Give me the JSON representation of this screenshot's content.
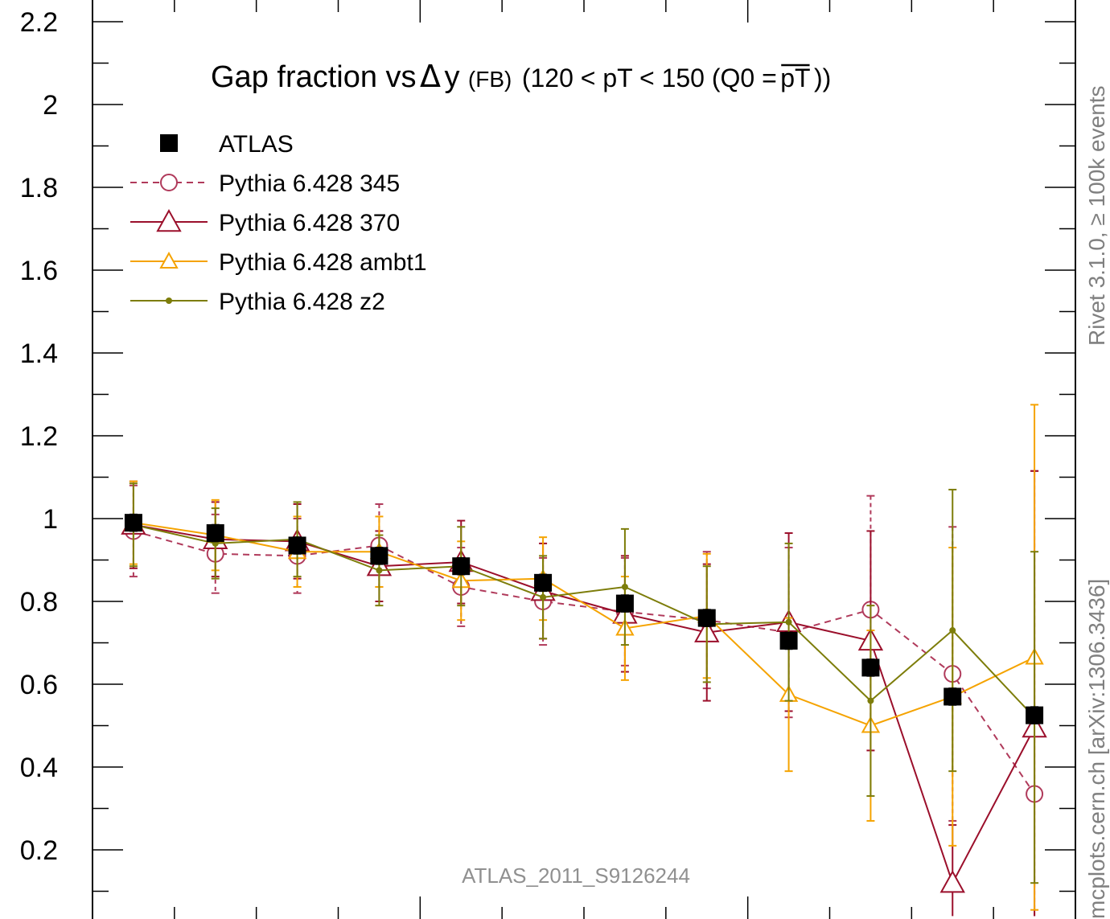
{
  "chart_data": {
    "type": "line",
    "title": {
      "main": "Gap fraction vs",
      "delta": "Δ",
      "var": "y",
      "sub": "(FB)",
      "range": "(120 < pT < 150 (Q0 =",
      "overline": "pT",
      "close": "))"
    },
    "reference_label": "ATLAS_2011_S9126244",
    "side_label_top": "Rivet 3.1.0, ≥ 100k events",
    "side_label_bottom": "mcplots.cern.ch [arXiv:1306.3436]",
    "ylim": [
      0.04,
      2.22
    ],
    "xlim": [
      0,
      12
    ],
    "y_ticks": [
      {
        "value": 0.2,
        "label": "0.2"
      },
      {
        "value": 0.4,
        "label": "0.4"
      },
      {
        "value": 0.6,
        "label": "0.6"
      },
      {
        "value": 0.8,
        "label": "0.8"
      },
      {
        "value": 1.0,
        "label": "1"
      },
      {
        "value": 1.2,
        "label": "1.2"
      },
      {
        "value": 1.4,
        "label": "1.4"
      },
      {
        "value": 1.6,
        "label": "1.6"
      },
      {
        "value": 1.8,
        "label": "1.8"
      },
      {
        "value": 2.0,
        "label": "2"
      },
      {
        "value": 2.2,
        "label": "2.2"
      }
    ],
    "x": [
      0.5,
      1.5,
      2.5,
      3.5,
      4.5,
      5.5,
      6.5,
      7.5,
      8.5,
      9.5,
      10.5,
      11.5
    ],
    "series": [
      {
        "name": "ATLAS",
        "style": "data",
        "color": "#000000",
        "values": [
          0.99,
          0.965,
          0.935,
          0.91,
          0.885,
          0.845,
          0.795,
          0.76,
          0.705,
          0.64,
          0.57,
          0.525
        ],
        "err": [
          0.02,
          0.02,
          0.02,
          0.02,
          0.02,
          0.02,
          0.02,
          0.02,
          0.02,
          0.02,
          0.02,
          0.02
        ]
      },
      {
        "name": "Pythia 6.428 345",
        "style": "circle-dashed",
        "color": "#b03a5b",
        "values": [
          0.97,
          0.915,
          0.91,
          0.935,
          0.835,
          0.8,
          0.775,
          0.755,
          0.725,
          0.78,
          0.625,
          0.335
        ],
        "err": [
          0.11,
          0.095,
          0.09,
          0.1,
          0.095,
          0.105,
          0.13,
          0.165,
          0.205,
          0.275,
          0.355,
          0.78
        ]
      },
      {
        "name": "Pythia 6.428 370",
        "style": "triangle-solid",
        "color": "#9b0f2b",
        "values": [
          0.985,
          0.95,
          0.945,
          0.885,
          0.895,
          0.825,
          0.77,
          0.725,
          0.75,
          0.705,
          0.12,
          0.495
        ],
        "err": [
          0.105,
          0.09,
          0.09,
          0.085,
          0.1,
          0.115,
          0.14,
          0.165,
          0.215,
          0.265,
          0.14,
          0.62
        ]
      },
      {
        "name": "Pythia 6.428 ambt1",
        "style": "triangle-small",
        "color": "#f5a300",
        "values": [
          0.99,
          0.96,
          0.92,
          0.92,
          0.85,
          0.855,
          0.735,
          0.765,
          0.575,
          0.5,
          0.57,
          0.665
        ],
        "err": [
          0.1,
          0.085,
          0.085,
          0.085,
          0.095,
          0.1,
          0.125,
          0.15,
          0.185,
          0.23,
          0.36,
          0.61
        ]
      },
      {
        "name": "Pythia 6.428 z2",
        "style": "dot-solid",
        "color": "#7d7d0a",
        "values": [
          0.985,
          0.94,
          0.95,
          0.875,
          0.885,
          0.81,
          0.835,
          0.745,
          0.75,
          0.56,
          0.73,
          0.52
        ],
        "err": [
          0.1,
          0.085,
          0.09,
          0.085,
          0.095,
          0.1,
          0.14,
          0.14,
          0.19,
          0.23,
          0.34,
          0.4
        ]
      }
    ],
    "legend_position": "top-left"
  }
}
